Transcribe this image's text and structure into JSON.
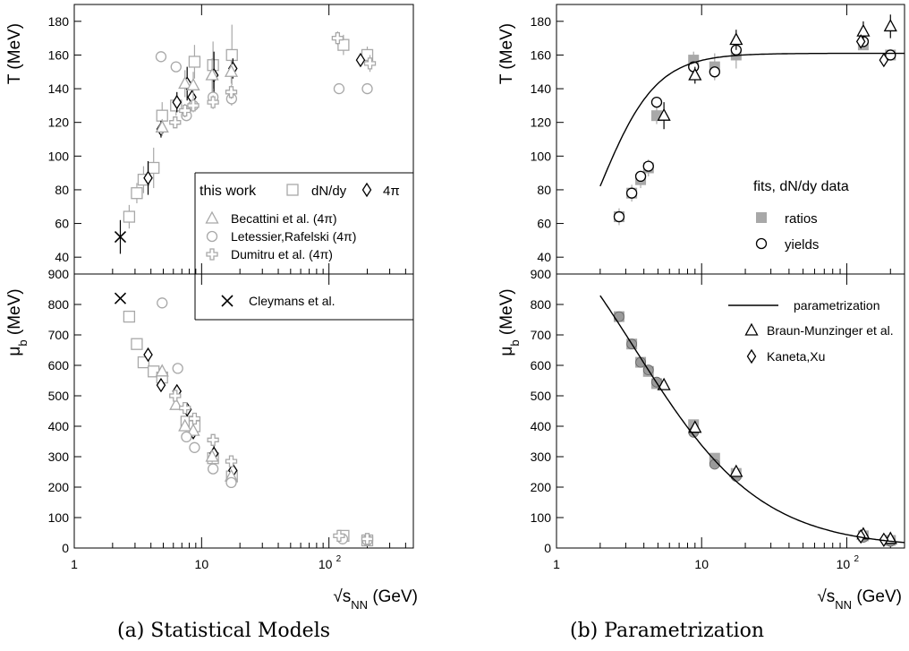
{
  "captions": {
    "left": "(a)  Statistical Models",
    "right": "(b)  Parametrization"
  },
  "colors": {
    "gray": "#a8a8a8",
    "dark": "#000000",
    "fill": "#9a9a9a"
  },
  "chart_data": [
    {
      "panel": "a-top",
      "type": "scatter",
      "xscale": "log",
      "xlim": [
        1,
        460
      ],
      "ylim": [
        30,
        190
      ],
      "ylabel": "T (MeV)",
      "x_ticks": [],
      "y_ticks": [
        40,
        60,
        80,
        100,
        120,
        140,
        160,
        180
      ],
      "legend": {
        "placement": "lower-right",
        "this_work": "this work",
        "dndy": "dN/dy",
        "four_pi": "4π",
        "entries": [
          "Becattini et al. (4π)",
          "Letessier,Rafelski (4π)",
          "Dumitru et al. (4π)"
        ]
      },
      "series": [
        {
          "name": "dN/dy",
          "marker": "square",
          "color": "#a8a8a8",
          "x": [
            2.7,
            3.1,
            3.5,
            4.2,
            4.9,
            6.3,
            8.8,
            12.3,
            17.3,
            130,
            200
          ],
          "y": [
            64,
            78,
            86,
            93,
            124,
            130,
            156,
            154,
            160,
            166,
            160
          ],
          "err": [
            7,
            6,
            8,
            12,
            8,
            6,
            10,
            14,
            18,
            6,
            5
          ]
        },
        {
          "name": "4π",
          "marker": "diamond",
          "color": "#000000",
          "x": [
            3.8,
            4.8,
            6.4,
            7.7,
            8.4,
            12.5,
            17.6,
            177
          ],
          "y": [
            87,
            116,
            132,
            143,
            135,
            148,
            152,
            157
          ],
          "err": [
            10,
            5,
            6,
            10,
            8,
            14,
            6,
            3
          ]
        },
        {
          "name": "Becattini et al. (4π)",
          "marker": "triangle",
          "color": "#a8a8a8",
          "x": [
            4.9,
            7.4,
            8.6,
            12.1,
            17.1
          ],
          "y": [
            117,
            143,
            142,
            148,
            150
          ],
          "err": [
            5,
            8,
            8,
            10,
            7
          ]
        },
        {
          "name": "Letessier,Rafelski (4π)",
          "marker": "circle",
          "color": "#a8a8a8",
          "x": [
            4.8,
            6.3,
            7.6,
            8.6,
            12.3,
            17.2,
            120,
            200
          ],
          "y": [
            159,
            153,
            124,
            130,
            135,
            134,
            140,
            140
          ],
          "err": [
            3,
            3,
            3,
            3,
            5,
            4,
            0,
            0
          ]
        },
        {
          "name": "Dumitru et al. (4π)",
          "marker": "cross",
          "color": "#a8a8a8",
          "x": [
            6.2,
            7.4,
            8.6,
            12.3,
            17.1,
            117,
            210
          ],
          "y": [
            120,
            127,
            130,
            132,
            138,
            170,
            155
          ],
          "err": [
            3,
            4,
            4,
            4,
            4,
            4,
            5
          ]
        },
        {
          "name": "Cleymans et al.",
          "marker": "x",
          "color": "#000000",
          "x": [
            2.3
          ],
          "y": [
            52
          ],
          "err": [
            10
          ]
        }
      ]
    },
    {
      "panel": "a-bottom",
      "type": "scatter",
      "xscale": "log",
      "xlim": [
        1,
        460
      ],
      "ylim": [
        0,
        900
      ],
      "ylabel": "μ_b (MeV)",
      "xlabel": "√s_NN (GeV)",
      "x_ticks": [
        "1",
        "10",
        "10^2"
      ],
      "y_ticks": [
        0,
        100,
        200,
        300,
        400,
        500,
        600,
        700,
        800,
        900
      ],
      "legend": {
        "placement": "top-right",
        "entries": [
          "Cleymans et al."
        ]
      },
      "series": [
        {
          "name": "dN/dy",
          "marker": "square",
          "color": "#a8a8a8",
          "x": [
            2.7,
            3.1,
            3.5,
            4.2,
            4.9,
            7.6,
            8.8,
            12.3,
            17.3,
            130,
            200
          ],
          "y": [
            760,
            670,
            610,
            580,
            560,
            415,
            400,
            295,
            235,
            40,
            25
          ],
          "err": [
            0,
            0,
            0,
            0,
            0,
            0,
            0,
            0,
            0,
            0,
            0
          ]
        },
        {
          "name": "4π",
          "marker": "diamond",
          "color": "#000000",
          "x": [
            3.8,
            4.8,
            6.4,
            7.7,
            8.6,
            12.5,
            17.6
          ],
          "y": [
            635,
            535,
            515,
            455,
            380,
            310,
            255
          ],
          "err": [
            10,
            12,
            15,
            15,
            15,
            25,
            25
          ]
        },
        {
          "name": "Becattini et al. (4π)",
          "marker": "triangle",
          "color": "#a8a8a8",
          "x": [
            4.9,
            6.3,
            7.4,
            8.6,
            12.1,
            17.1
          ],
          "y": [
            580,
            470,
            400,
            385,
            300,
            235
          ],
          "err": [
            15,
            15,
            15,
            15,
            20,
            20
          ]
        },
        {
          "name": "Letessier,Rafelski (4π)",
          "marker": "circle",
          "color": "#a8a8a8",
          "x": [
            4.9,
            6.5,
            7.6,
            8.8,
            12.3,
            17.1,
            128,
            200
          ],
          "y": [
            805,
            590,
            365,
            330,
            260,
            215,
            30,
            25
          ],
          "err": [
            0,
            0,
            0,
            0,
            0,
            0,
            0,
            0
          ]
        },
        {
          "name": "Dumitru et al. (4π)",
          "marker": "cross",
          "color": "#a8a8a8",
          "x": [
            6.2,
            7.4,
            8.8,
            12.3,
            17.1,
            120,
            200
          ],
          "y": [
            500,
            460,
            425,
            355,
            285,
            40,
            30
          ],
          "err": [
            8,
            8,
            8,
            8,
            8,
            3,
            3
          ]
        },
        {
          "name": "Cleymans et al.",
          "marker": "x",
          "color": "#000000",
          "x": [
            2.3
          ],
          "y": [
            820
          ],
          "err": [
            0
          ]
        }
      ]
    },
    {
      "panel": "b-top",
      "type": "scatter",
      "xscale": "log",
      "xlim": [
        1,
        250
      ],
      "ylim": [
        30,
        190
      ],
      "ylabel": "T (MeV)",
      "x_ticks": [],
      "y_ticks": [
        40,
        60,
        80,
        100,
        120,
        140,
        160,
        180
      ],
      "legend": {
        "placement": "right",
        "title": "fits, dN/dy data",
        "entries": [
          "ratios",
          "yields"
        ]
      },
      "series": [
        {
          "name": "ratios",
          "marker": "filled-square",
          "color": "#a8a8a8",
          "x": [
            2.7,
            3.3,
            3.8,
            4.3,
            4.9,
            8.8,
            12.3,
            17.3,
            130,
            200
          ],
          "y": [
            64,
            78,
            86,
            93,
            124,
            157,
            153,
            160,
            166,
            160
          ],
          "err": [
            5,
            5,
            5,
            5,
            5,
            5,
            8,
            8,
            3,
            3
          ]
        },
        {
          "name": "yields",
          "marker": "circle",
          "color": "#000000",
          "x": [
            2.7,
            3.3,
            3.8,
            4.3,
            4.9,
            8.8,
            12.3,
            17.3,
            130,
            200
          ],
          "y": [
            64,
            78,
            88,
            94,
            132,
            153,
            150,
            163,
            168,
            160
          ],
          "err": [
            0,
            3,
            3,
            3,
            3,
            3,
            3,
            3,
            3,
            3
          ]
        },
        {
          "name": "Braun-Munzinger et al.",
          "marker": "triangle",
          "color": "#000000",
          "x": [
            5.5,
            9,
            17.3,
            130,
            200
          ],
          "y": [
            124,
            148,
            169,
            174,
            177
          ],
          "err": [
            8,
            5,
            6,
            6,
            7
          ]
        },
        {
          "name": "Kaneta,Xu",
          "marker": "diamond",
          "color": "#000000",
          "x": [
            125,
            180
          ],
          "y": [
            168,
            157
          ],
          "err": [
            3,
            3
          ]
        }
      ],
      "curve": {
        "type": "parametrization",
        "T_lim": 161,
        "a": 0.45,
        "b": 1.5
      }
    },
    {
      "panel": "b-bottom",
      "type": "scatter",
      "xscale": "log",
      "xlim": [
        1,
        250
      ],
      "ylim": [
        0,
        900
      ],
      "ylabel": "μ_b (MeV)",
      "xlabel": "√s_NN (GeV)",
      "x_ticks": [
        "1",
        "10",
        "10^2"
      ],
      "y_ticks": [
        0,
        100,
        200,
        300,
        400,
        500,
        600,
        700,
        800,
        900
      ],
      "legend": {
        "placement": "top-right",
        "entries": [
          "parametrization",
          "Braun-Munzinger et al.",
          "Kaneta,Xu"
        ]
      },
      "series": [
        {
          "name": "ratios",
          "marker": "filled-square",
          "color": "#a8a8a8",
          "x": [
            2.7,
            3.3,
            3.8,
            4.3,
            4.9,
            8.8,
            12.3,
            17.3,
            130,
            200
          ],
          "y": [
            760,
            670,
            610,
            580,
            540,
            405,
            295,
            245,
            40,
            25
          ],
          "err": [
            0,
            0,
            0,
            0,
            0,
            0,
            0,
            0,
            0,
            0
          ]
        },
        {
          "name": "yields",
          "marker": "filled-circle",
          "color": "#9a9a9a",
          "x": [
            2.7,
            3.3,
            3.8,
            4.3,
            4.9,
            8.8,
            12.3,
            17.3,
            130,
            200
          ],
          "y": [
            760,
            670,
            610,
            585,
            545,
            380,
            275,
            235,
            35,
            22
          ],
          "err": [
            0,
            0,
            0,
            0,
            0,
            0,
            0,
            0,
            0,
            0
          ]
        },
        {
          "name": "Braun-Munzinger et al.",
          "marker": "triangle",
          "color": "#000000",
          "x": [
            5.5,
            9,
            17.3,
            130,
            200
          ],
          "y": [
            535,
            395,
            250,
            45,
            30
          ],
          "err": [
            0,
            0,
            0,
            0,
            0
          ]
        },
        {
          "name": "Kaneta,Xu",
          "marker": "diamond",
          "color": "#000000",
          "x": [
            125,
            180
          ],
          "y": [
            38,
            27
          ],
          "err": [
            0,
            0
          ]
        }
      ],
      "curve": {
        "type": "parametrization",
        "mu_a": 1303,
        "mu_b": 0.286
      }
    }
  ]
}
